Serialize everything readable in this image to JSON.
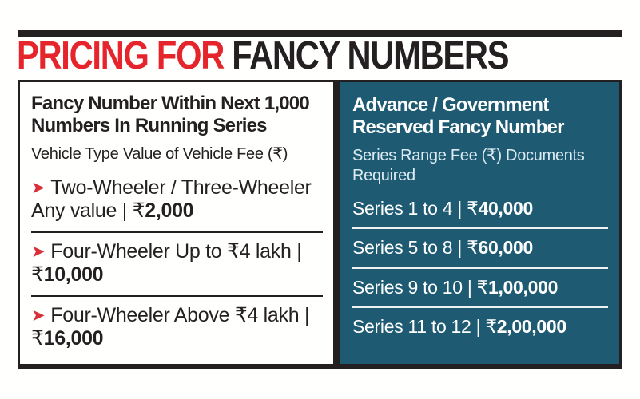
{
  "title": {
    "highlight": "PRICING FOR",
    "rest": "FANCY NUMBERS"
  },
  "colors": {
    "ink_black": "#241f21",
    "title_red": "#e5242b",
    "bullet_red": "#d9303a",
    "panel_teal": "#1e5b73"
  },
  "icons": {
    "bullet": "➤"
  },
  "divider_glyph": "|",
  "left_panel": {
    "heading": "Fancy Number Within Next 1,000 Numbers In Running Series",
    "subheading": "Vehicle Type Value of Vehicle Fee (₹)",
    "items": [
      {
        "label": "Two-Wheeler / Three-Wheeler Any value",
        "currency": "₹",
        "amount": "2,000"
      },
      {
        "label": "Four-Wheeler Up to ₹4 lakh",
        "currency": "₹",
        "amount": "10,000"
      },
      {
        "label": "Four-Wheeler Above ₹4 lakh",
        "currency": "₹",
        "amount": "16,000"
      }
    ]
  },
  "right_panel": {
    "heading": "Advance / Government Reserved Fancy Number",
    "subheading": "Series Range Fee (₹) Documents Required",
    "rows": [
      {
        "label": "Series 1 to 4",
        "currency": "₹",
        "amount": "40,000"
      },
      {
        "label": "Series 5 to 8",
        "currency": "₹",
        "amount": "60,000"
      },
      {
        "label": "Series 9 to 10",
        "currency": "₹",
        "amount": "1,00,000"
      },
      {
        "label": "Series 11 to 12",
        "currency": "₹",
        "amount": "2,00,000"
      }
    ]
  }
}
